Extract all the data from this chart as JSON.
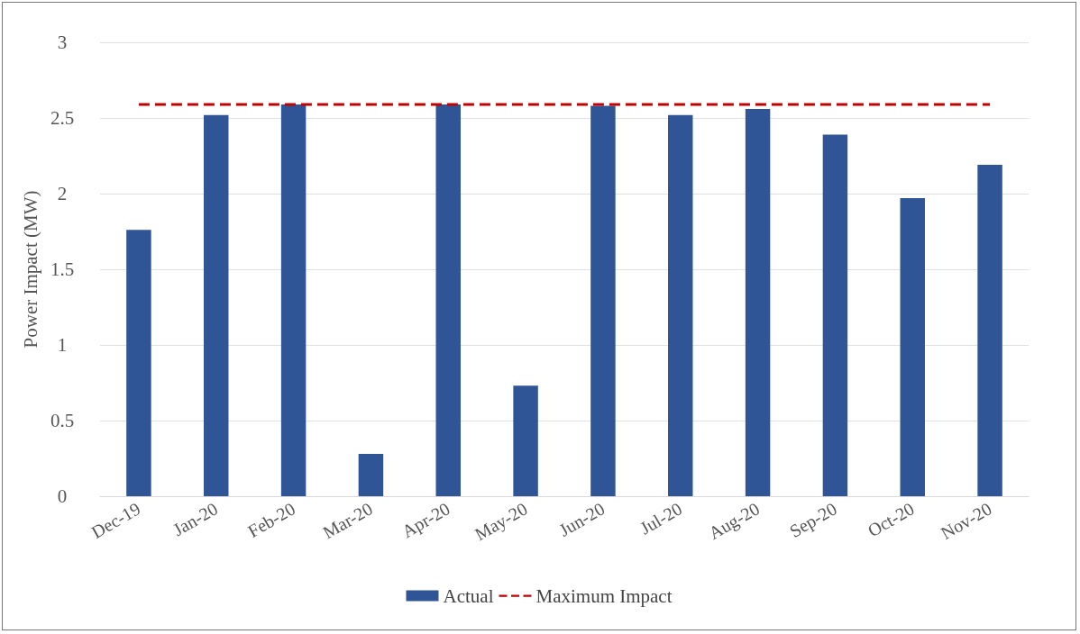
{
  "chart_data": {
    "type": "bar",
    "ylabel": "Power Impact (MW)",
    "categories": [
      "Dec-19",
      "Jan-20",
      "Feb-20",
      "Mar-20",
      "Apr-20",
      "May-20",
      "Jun-20",
      "Jul-20",
      "Aug-20",
      "Sep-20",
      "Oct-20",
      "Nov-20"
    ],
    "series": [
      {
        "name": "Actual",
        "color": "#2f5597",
        "values": [
          1.76,
          2.52,
          2.59,
          0.28,
          2.59,
          0.73,
          2.58,
          2.52,
          2.56,
          2.39,
          1.97,
          2.19
        ]
      },
      {
        "name": "Maximum Impact",
        "type": "line",
        "color": "#c00000",
        "line_style": "dashed",
        "marker": "none",
        "values": [
          2.59,
          2.59,
          2.59,
          2.59,
          2.59,
          2.59,
          2.59,
          2.59,
          2.59,
          2.59,
          2.59,
          2.59
        ]
      }
    ],
    "ylim": [
      0,
      3
    ],
    "yticks": [
      0,
      0.5,
      1,
      1.5,
      2,
      2.5,
      3
    ],
    "grid": "y",
    "legend": "bottom"
  }
}
